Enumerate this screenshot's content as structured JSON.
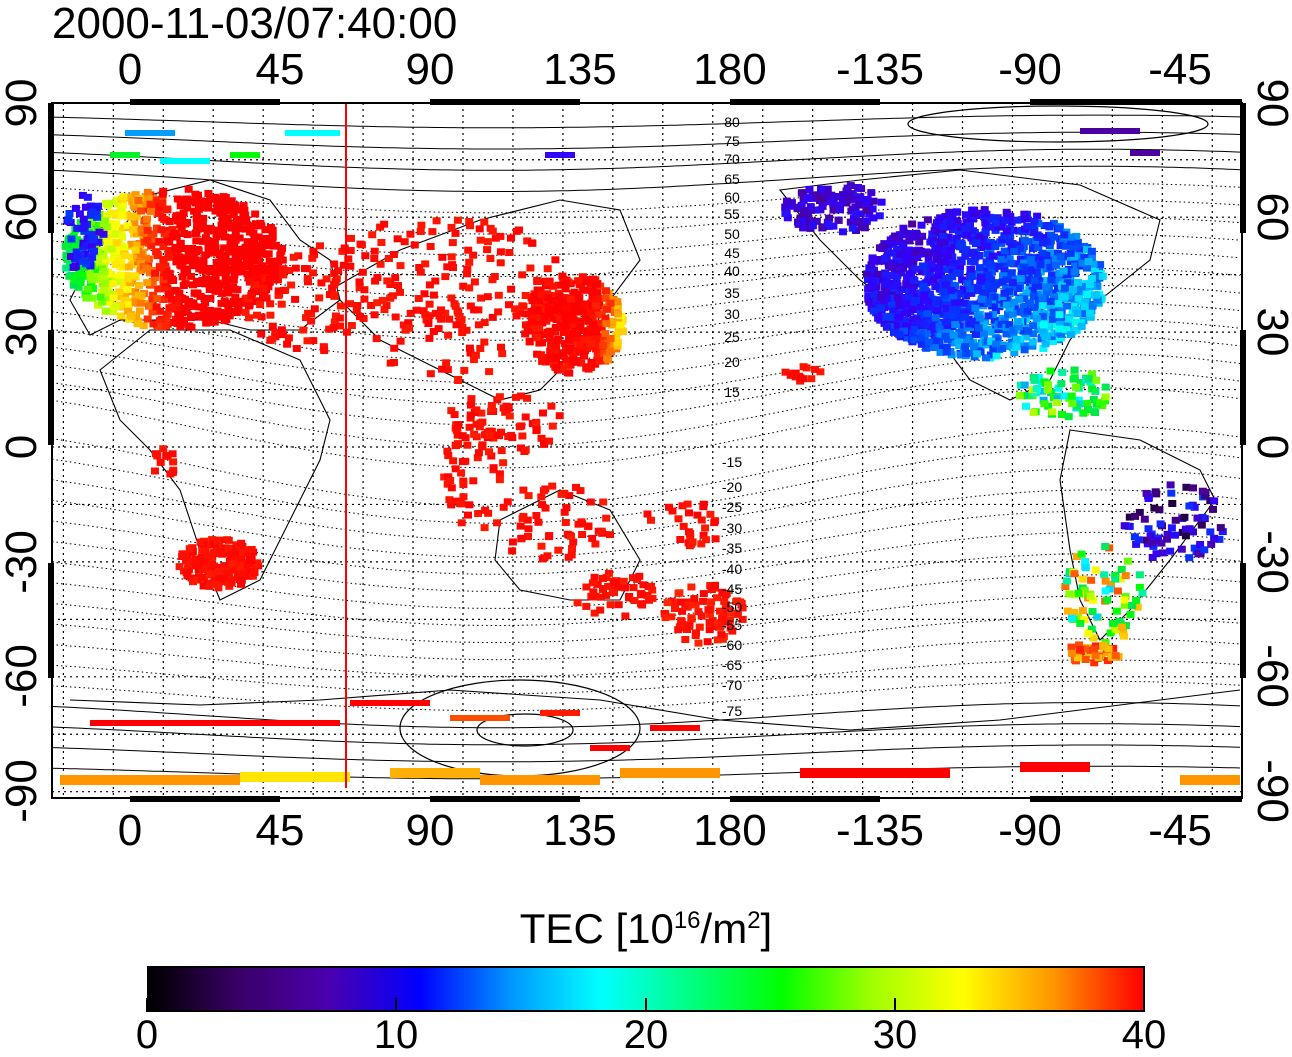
{
  "title": "2000-11-03/07:40:00",
  "map": {
    "lon_ticks_top": [
      "0",
      "45",
      "90",
      "135",
      "180",
      "-135",
      "-90",
      "-45"
    ],
    "lon_ticks_bottom": [
      "0",
      "45",
      "90",
      "135",
      "180",
      "-135",
      "-90",
      "-45"
    ],
    "lat_ticks_left": [
      "90",
      "60",
      "30",
      "0",
      "-30",
      "-60",
      "-90"
    ],
    "lat_ticks_right": [
      "90",
      "60",
      "30",
      "0",
      "-30",
      "-60",
      "-90"
    ],
    "contour_labels_north": [
      "80",
      "75",
      "70",
      "65",
      "60",
      "55",
      "50",
      "45",
      "40",
      "35",
      "30",
      "25",
      "20",
      "15"
    ],
    "contour_labels_south": [
      "-15",
      "-20",
      "-25",
      "-30",
      "-35",
      "-40",
      "-45",
      "-50",
      "-55",
      "-60",
      "-65",
      "-70",
      "-75"
    ],
    "terminator_line_color": "#ff0000"
  },
  "colorbar": {
    "label_prefix": "TEC  [10",
    "label_sup1": "16",
    "label_mid": "/m",
    "label_sup2": "2",
    "label_suffix": "]",
    "ticks": [
      "0",
      "10",
      "20",
      "30",
      "40"
    ],
    "colors": [
      "#000000",
      "#3a0068",
      "#4a00b0",
      "#0000ff",
      "#0096ff",
      "#00ffff",
      "#00ff80",
      "#00ff00",
      "#a0ff00",
      "#ffff00",
      "#ff9600",
      "#ff0000"
    ]
  }
}
